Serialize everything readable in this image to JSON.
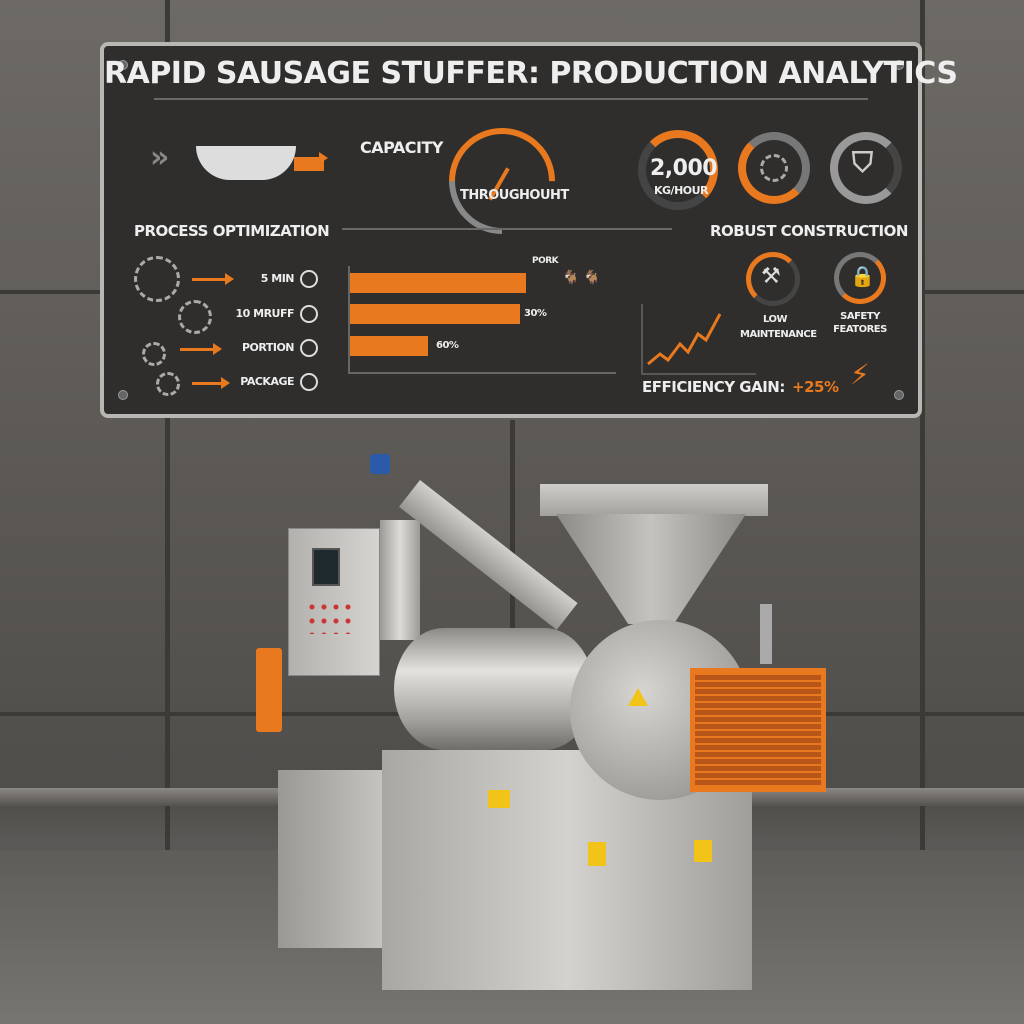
{
  "panel": {
    "title": "RAPID SAUSAGE STUFFER: PRODUCTION ANALYTICS",
    "capacity_label": "CAPACITY",
    "throughput_label": "THROUGHOUHT",
    "capacity_value": "2,000",
    "capacity_unit": "KG/HOUR",
    "process_heading": "PROCESS OPTIMIZATION",
    "process_steps": [
      {
        "label": "5 MIN",
        "icon": "clock-icon"
      },
      {
        "label": "10 MRUFF",
        "icon": "clock-icon"
      },
      {
        "label": "PORTION",
        "icon": "clock-icon"
      },
      {
        "label": "PACKAGE",
        "icon": "clock-icon"
      }
    ],
    "bar_labels": [
      "PORK",
      "30%",
      "60%"
    ],
    "robust_heading": "ROBUST CONSTRUCTION",
    "low_maintenance": "LOW MAINTENANCE",
    "safety_features": "SAFETY FEATORES",
    "efficiency_label": "EFFICIENCY GAIN:",
    "efficiency_value": "+25%",
    "accent_color": "#e8791e"
  }
}
